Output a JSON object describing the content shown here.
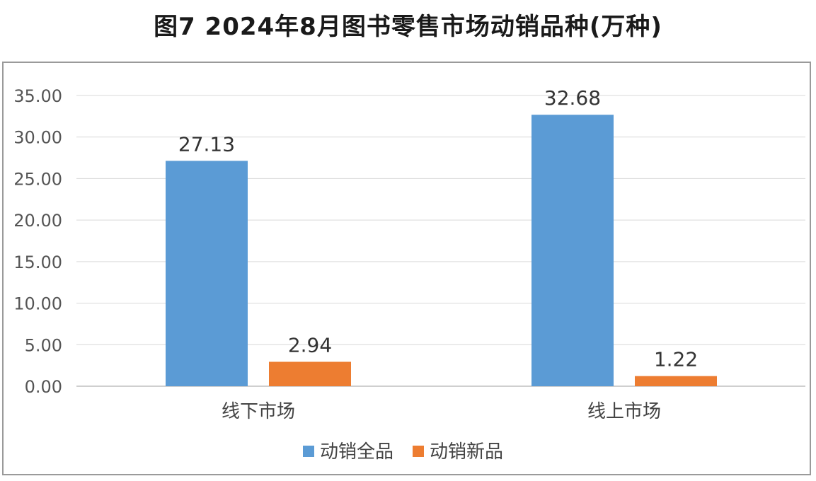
{
  "chart_data": {
    "type": "bar",
    "title": "图7  2024年8月图书零售市场动销品种(万种)",
    "categories": [
      "线下市场",
      "线上市场"
    ],
    "series": [
      {
        "name": "动销全品",
        "values": [
          27.13,
          32.68
        ],
        "color": "#5b9bd5"
      },
      {
        "name": "动销新品",
        "values": [
          2.94,
          1.22
        ],
        "color": "#ed7d31"
      }
    ],
    "ylim": [
      0,
      35
    ],
    "yticks": [
      "0.00",
      "5.00",
      "10.00",
      "15.00",
      "20.00",
      "25.00",
      "30.00",
      "35.00"
    ],
    "data_labels": [
      [
        "27.13",
        "32.68"
      ],
      [
        "2.94",
        "1.22"
      ]
    ],
    "grid": true,
    "legend": "bottom"
  }
}
